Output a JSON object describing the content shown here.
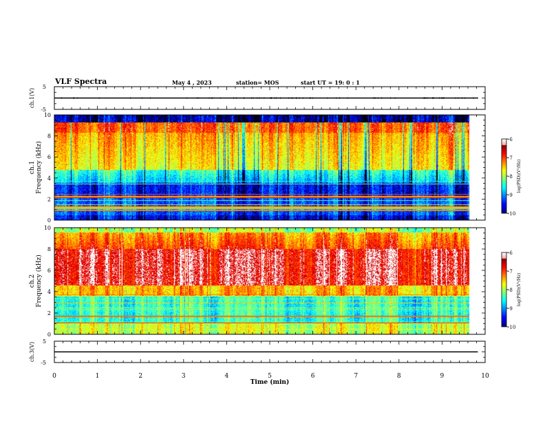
{
  "header": {
    "title": "VLF Spectra",
    "date": "May 4 , 2023",
    "station": "station= MOS",
    "start": "start UT =  19: 0 : 1"
  },
  "chart_data": [
    {
      "type": "line",
      "panel": "ch1-waveform",
      "ylabel": "ch.1(V)",
      "ylim": [
        -5,
        5
      ],
      "yticks": [
        "5",
        "-5"
      ],
      "xlim": [
        0,
        10
      ],
      "series": [
        {
          "x": [
            0,
            9.83
          ],
          "values": [
            0,
            0
          ]
        }
      ]
    },
    {
      "type": "heatmap",
      "panel": "ch1-spectrogram",
      "ylabel": "ch.1\nFrequency (kHz)",
      "ylim": [
        0,
        10
      ],
      "yticks": [
        "0",
        "2",
        "4",
        "6",
        "8",
        "10"
      ],
      "xlim": [
        0,
        10
      ],
      "data_xmax": 9.83,
      "colorbar": {
        "label": "log(PSD)(V²/Hz)",
        "range": [
          -10,
          -6
        ],
        "ticks": [
          "-6",
          "-7",
          "-8",
          "-9",
          "-10"
        ]
      }
    },
    {
      "type": "heatmap",
      "panel": "ch2-spectrogram",
      "ylabel": "ch.2\nFrequency (kHz)",
      "ylim": [
        0,
        10
      ],
      "yticks": [
        "0",
        "2",
        "4",
        "6",
        "8",
        "10"
      ],
      "xlim": [
        0,
        10
      ],
      "data_xmax": 9.83,
      "colorbar": {
        "label": "log(PSD)(V²/Hz)",
        "range": [
          -10,
          -6
        ],
        "ticks": [
          "-6",
          "-7",
          "-8",
          "-9",
          "-10"
        ]
      }
    },
    {
      "type": "line",
      "panel": "ch3-waveform",
      "ylabel": "ch.3(V)",
      "ylim": [
        -5,
        5
      ],
      "yticks": [
        "5",
        "-5"
      ],
      "xlim": [
        0,
        10
      ],
      "series": [
        {
          "x": [
            0,
            9.83
          ],
          "values": [
            0,
            0
          ]
        }
      ]
    }
  ],
  "xaxis": {
    "label": "Time  (min)",
    "ticks": [
      "0",
      "1",
      "2",
      "3",
      "4",
      "5",
      "6",
      "7",
      "8",
      "9",
      "10"
    ]
  }
}
